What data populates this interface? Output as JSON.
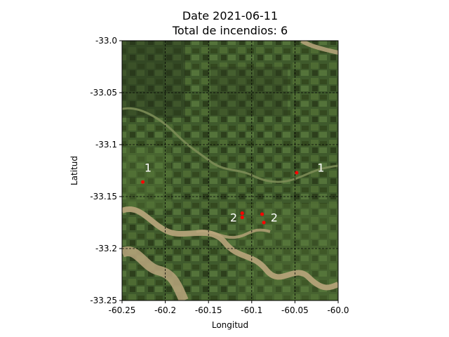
{
  "title": {
    "line1": "Date 2021-06-11",
    "line2": "Total de incendios: 6"
  },
  "axes": {
    "xlabel": "Longitud",
    "ylabel": "Latitud",
    "xlim": [
      -60.25,
      -60.0
    ],
    "ylim": [
      -33.25,
      -33.0
    ],
    "xticks": [
      {
        "value": -60.25,
        "label": "-60.25"
      },
      {
        "value": -60.2,
        "label": "-60.2"
      },
      {
        "value": -60.15,
        "label": "-60.15"
      },
      {
        "value": -60.1,
        "label": "-60.1"
      },
      {
        "value": -60.05,
        "label": "-60.05"
      },
      {
        "value": -60.0,
        "label": "-60.0"
      }
    ],
    "yticks": [
      {
        "value": -33.0,
        "label": "-33.0"
      },
      {
        "value": -33.05,
        "label": "-33.05"
      },
      {
        "value": -33.1,
        "label": "-33.1"
      },
      {
        "value": -33.15,
        "label": "-33.15"
      },
      {
        "value": -33.2,
        "label": "-33.2"
      },
      {
        "value": -33.25,
        "label": "-33.25"
      }
    ],
    "grid": true,
    "grid_style": "dashed"
  },
  "chart_data": {
    "type": "scatter",
    "fire_points": [
      {
        "lon": -60.226,
        "lat": -33.136
      },
      {
        "lon": -60.111,
        "lat": -33.166
      },
      {
        "lon": -60.111,
        "lat": -33.17
      },
      {
        "lon": -60.088,
        "lat": -33.167
      },
      {
        "lon": -60.086,
        "lat": -33.175
      },
      {
        "lon": -60.048,
        "lat": -33.127
      }
    ],
    "cluster_labels": [
      {
        "lon": -60.22,
        "lat": -33.122,
        "text": "1"
      },
      {
        "lon": -60.121,
        "lat": -33.17,
        "text": "2"
      },
      {
        "lon": -60.074,
        "lat": -33.17,
        "text": "2"
      },
      {
        "lon": -60.02,
        "lat": -33.122,
        "text": "1"
      }
    ],
    "point_color": "#ff0000",
    "label_color": "#ffffff"
  },
  "colors": {
    "terrain_base": "#3f5a2c",
    "terrain_light": "#5a7a3a",
    "terrain_dark": "#26341a",
    "river": "#b9a57c",
    "grid": "#000000"
  }
}
